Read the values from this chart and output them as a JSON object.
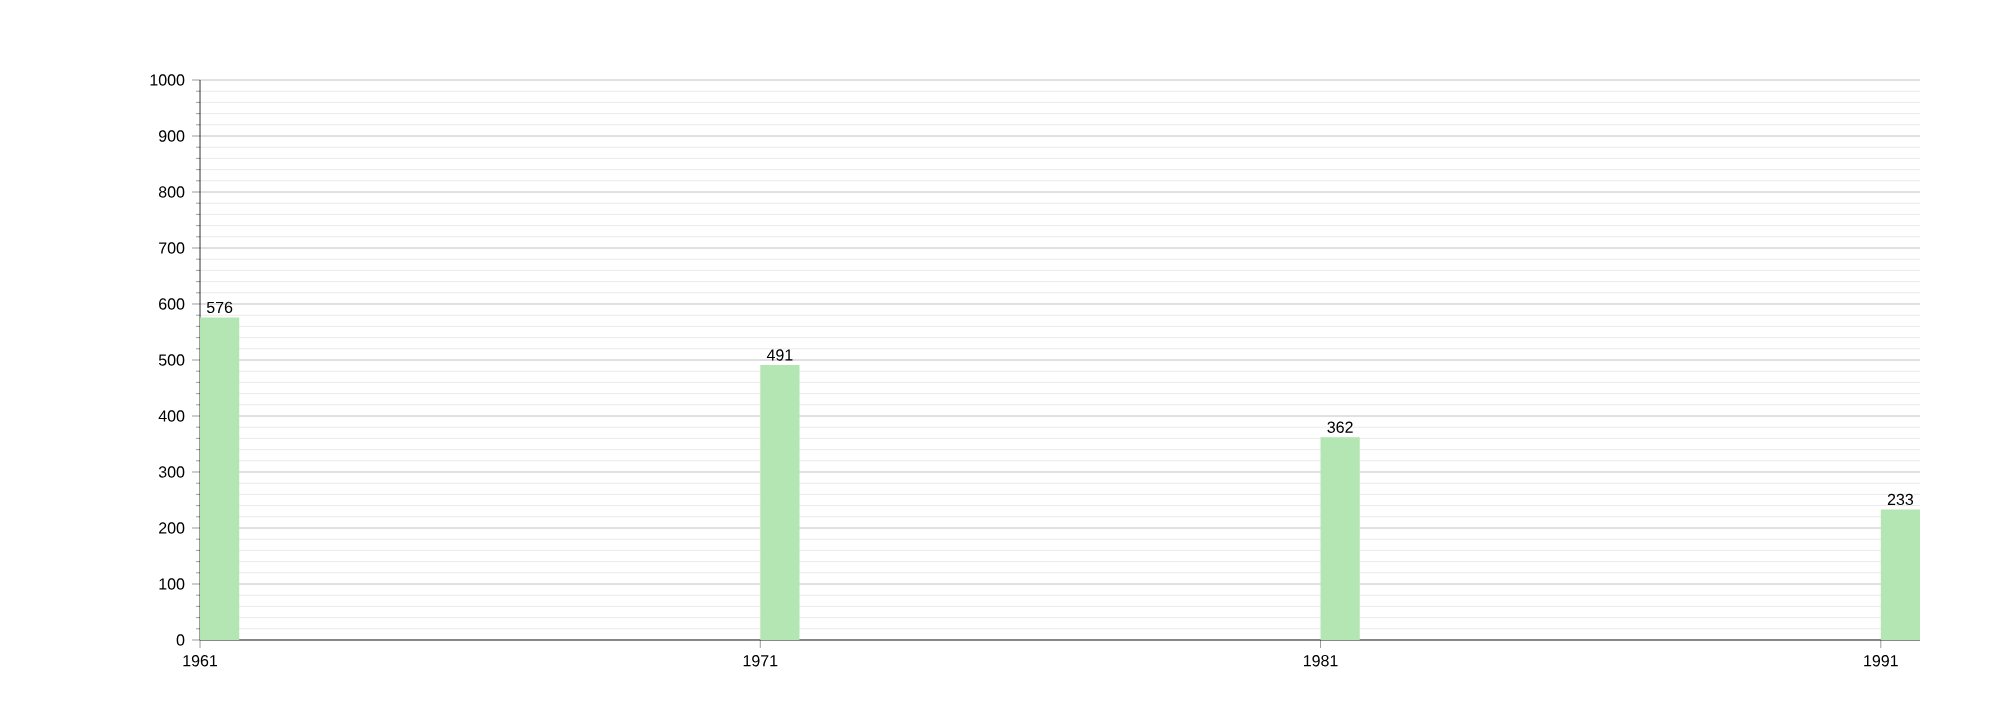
{
  "chart_data": {
    "type": "bar",
    "categories": [
      "1961",
      "1971",
      "1981",
      "1991"
    ],
    "values": [
      576,
      491,
      362,
      233
    ],
    "color": "#b3e6b3",
    "ylim": [
      0,
      1000
    ],
    "yticks": [
      0,
      100,
      200,
      300,
      400,
      500,
      600,
      700,
      800,
      900,
      1000
    ],
    "grid": "y",
    "data_labels": true
  }
}
